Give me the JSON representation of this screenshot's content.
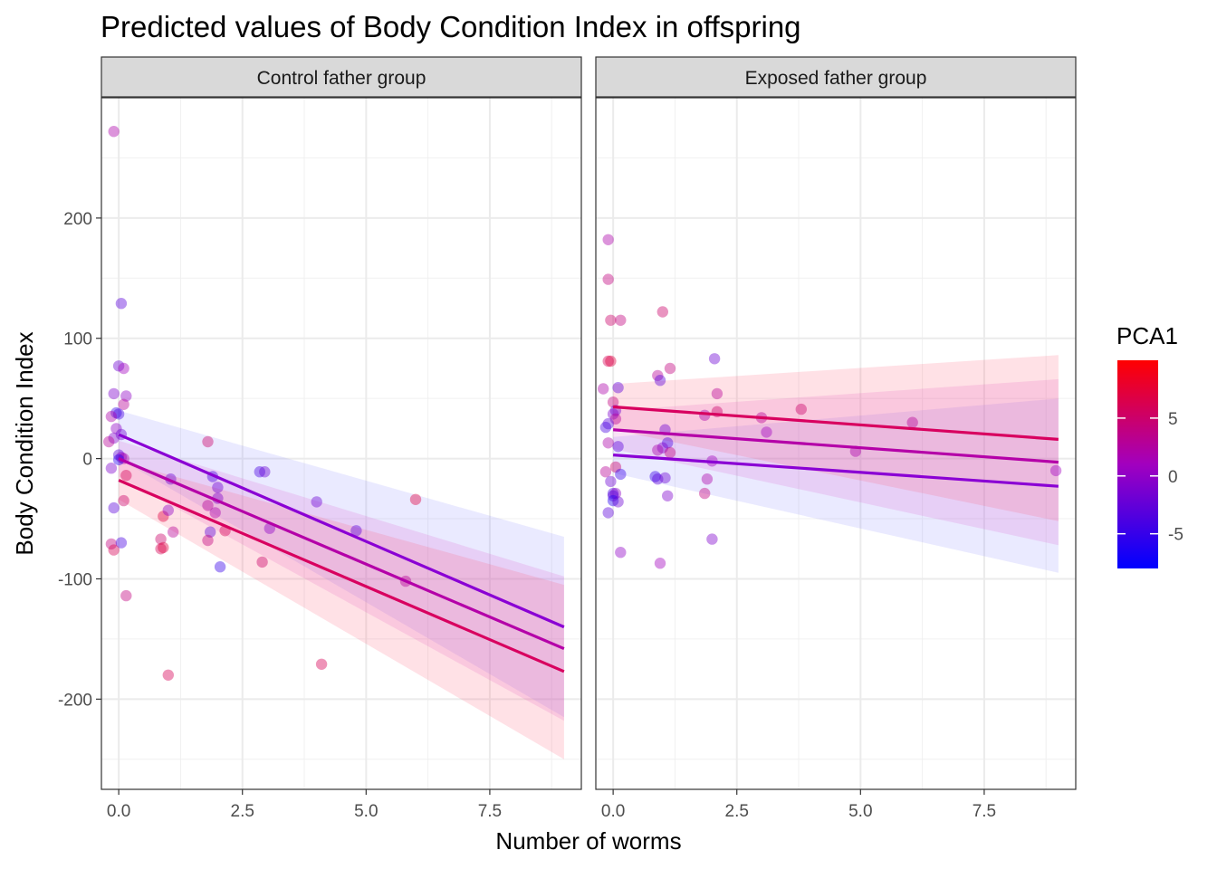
{
  "chart_data": {
    "type": "scatter",
    "title": "Predicted values of Body Condition Index in offspring",
    "xlabel": "Number of worms",
    "ylabel": "Body Condition Index",
    "xlim": [
      -0.35,
      9.35
    ],
    "ylim": [
      -275,
      300
    ],
    "x_ticks": [
      0,
      2.5,
      5,
      7.5
    ],
    "x_tick_labels": [
      "0.0",
      "2.5",
      "5.0",
      "7.5"
    ],
    "y_ticks": [
      -200,
      -100,
      0,
      100,
      200
    ],
    "y_tick_labels": [
      "-200",
      "-100",
      "0",
      "100",
      "200"
    ],
    "grid": true,
    "legend": {
      "title": "PCA1",
      "position": "right",
      "type": "colorbar",
      "range": [
        -8,
        10
      ],
      "ticks": [
        -5,
        0,
        5
      ],
      "tick_labels": [
        "-5",
        "0",
        "5"
      ],
      "color_low": "#0000ff",
      "color_mid": "#a200bf",
      "color_high": "#ff0000"
    },
    "panels": [
      {
        "strip_label": "Control father group",
        "lines": [
          {
            "pca1": -5,
            "color": "#8a00d4",
            "x": [
              0,
              9
            ],
            "y": [
              20,
              -140
            ],
            "ci": [
              [
                40,
                0
              ],
              [
                -65,
                -215
              ]
            ]
          },
          {
            "pca1": 0,
            "color": "#b400a8",
            "x": [
              0,
              9
            ],
            "y": [
              0,
              -158
            ],
            "ci": [
              [
                15,
                -15
              ],
              [
                -98,
                -218
              ]
            ]
          },
          {
            "pca1": 5,
            "color": "#d8005f",
            "x": [
              0,
              9
            ],
            "y": [
              -18,
              -177
            ],
            "ci": [
              [
                -2,
                -34
              ],
              [
                -105,
                -250
              ]
            ]
          }
        ],
        "points": [
          {
            "x": -0.1,
            "y": 272,
            "pca1": 2
          },
          {
            "x": 0.05,
            "y": 129,
            "pca1": -3
          },
          {
            "x": 0,
            "y": 77,
            "pca1": -2
          },
          {
            "x": 0.1,
            "y": 75,
            "pca1": 1
          },
          {
            "x": -0.1,
            "y": 54,
            "pca1": -1
          },
          {
            "x": 0.15,
            "y": 52,
            "pca1": 0
          },
          {
            "x": 0.1,
            "y": 45,
            "pca1": 3
          },
          {
            "x": -0.05,
            "y": 38,
            "pca1": -5
          },
          {
            "x": 0,
            "y": 37,
            "pca1": -4
          },
          {
            "x": -0.15,
            "y": 35,
            "pca1": 2
          },
          {
            "x": -0.05,
            "y": 25,
            "pca1": 0
          },
          {
            "x": 0.05,
            "y": 20,
            "pca1": -2
          },
          {
            "x": -0.1,
            "y": 17,
            "pca1": -1
          },
          {
            "x": -0.2,
            "y": 14,
            "pca1": 3
          },
          {
            "x": 0,
            "y": 3,
            "pca1": -3
          },
          {
            "x": 0.05,
            "y": 1,
            "pca1": 0
          },
          {
            "x": 0.1,
            "y": 0,
            "pca1": 2
          },
          {
            "x": 0,
            "y": -1,
            "pca1": -6
          },
          {
            "x": -0.15,
            "y": -8,
            "pca1": -1
          },
          {
            "x": 0.15,
            "y": -14,
            "pca1": 6
          },
          {
            "x": 0.1,
            "y": -35,
            "pca1": 5
          },
          {
            "x": -0.1,
            "y": -41,
            "pca1": -3
          },
          {
            "x": -0.15,
            "y": -71,
            "pca1": 4
          },
          {
            "x": 0.05,
            "y": -70,
            "pca1": -4
          },
          {
            "x": -0.1,
            "y": -76,
            "pca1": 6
          },
          {
            "x": 0.15,
            "y": -114,
            "pca1": 4
          },
          {
            "x": 0.9,
            "y": -48,
            "pca1": 7
          },
          {
            "x": 1.0,
            "y": -43,
            "pca1": 0
          },
          {
            "x": 1.05,
            "y": -17,
            "pca1": -2
          },
          {
            "x": 0.85,
            "y": -67,
            "pca1": 5
          },
          {
            "x": 0.85,
            "y": -75,
            "pca1": 6
          },
          {
            "x": 0.9,
            "y": -74,
            "pca1": 7
          },
          {
            "x": 1.1,
            "y": -61,
            "pca1": 3
          },
          {
            "x": 1.0,
            "y": -180,
            "pca1": 6
          },
          {
            "x": 1.8,
            "y": 14,
            "pca1": 5
          },
          {
            "x": 1.9,
            "y": -15,
            "pca1": -4
          },
          {
            "x": 2.0,
            "y": -24,
            "pca1": -2
          },
          {
            "x": 2.0,
            "y": -33,
            "pca1": -1
          },
          {
            "x": 1.8,
            "y": -39,
            "pca1": 3
          },
          {
            "x": 1.95,
            "y": -45,
            "pca1": 2
          },
          {
            "x": 1.85,
            "y": -61,
            "pca1": -3
          },
          {
            "x": 1.8,
            "y": -68,
            "pca1": 4
          },
          {
            "x": 2.15,
            "y": -60,
            "pca1": 6
          },
          {
            "x": 2.05,
            "y": -90,
            "pca1": -5
          },
          {
            "x": 2.85,
            "y": -11,
            "pca1": -4
          },
          {
            "x": 2.95,
            "y": -11,
            "pca1": -2
          },
          {
            "x": 3.05,
            "y": -58,
            "pca1": 0
          },
          {
            "x": 2.9,
            "y": -86,
            "pca1": 5
          },
          {
            "x": 4.0,
            "y": -36,
            "pca1": -2
          },
          {
            "x": 4.1,
            "y": -171,
            "pca1": 6
          },
          {
            "x": 4.8,
            "y": -60,
            "pca1": -3
          },
          {
            "x": 6.0,
            "y": -34,
            "pca1": 7
          },
          {
            "x": 5.8,
            "y": -102,
            "pca1": 3
          }
        ]
      },
      {
        "strip_label": "Exposed father group",
        "lines": [
          {
            "pca1": -5,
            "color": "#8a00d4",
            "x": [
              0,
              9
            ],
            "y": [
              3,
              -23
            ],
            "ci": [
              [
                18,
                -12
              ],
              [
                50,
                -95
              ]
            ]
          },
          {
            "pca1": 0,
            "color": "#b400a8",
            "x": [
              0,
              9
            ],
            "y": [
              24,
              -3
            ],
            "ci": [
              [
                40,
                8
              ],
              [
                66,
                -72
              ]
            ]
          },
          {
            "pca1": 5,
            "color": "#d8005f",
            "x": [
              0,
              9
            ],
            "y": [
              43,
              16
            ],
            "ci": [
              [
                62,
                24
              ],
              [
                86,
                -52
              ]
            ]
          }
        ],
        "points": [
          {
            "x": -0.1,
            "y": 182,
            "pca1": 2
          },
          {
            "x": -0.1,
            "y": 149,
            "pca1": 4
          },
          {
            "x": -0.05,
            "y": 115,
            "pca1": 5
          },
          {
            "x": 0.15,
            "y": 115,
            "pca1": 4
          },
          {
            "x": -0.1,
            "y": 81,
            "pca1": 6
          },
          {
            "x": -0.05,
            "y": 81,
            "pca1": 7
          },
          {
            "x": 0.1,
            "y": 59,
            "pca1": -3
          },
          {
            "x": -0.2,
            "y": 58,
            "pca1": 2
          },
          {
            "x": 0,
            "y": 47,
            "pca1": 4
          },
          {
            "x": 0.05,
            "y": 40,
            "pca1": -2
          },
          {
            "x": 0,
            "y": 37,
            "pca1": -1
          },
          {
            "x": 0.05,
            "y": 33,
            "pca1": 3
          },
          {
            "x": -0.1,
            "y": 29,
            "pca1": -3
          },
          {
            "x": -0.15,
            "y": 26,
            "pca1": -4
          },
          {
            "x": -0.1,
            "y": 13,
            "pca1": 2
          },
          {
            "x": 0.1,
            "y": 10,
            "pca1": -3
          },
          {
            "x": 0.05,
            "y": -7,
            "pca1": 5
          },
          {
            "x": -0.15,
            "y": -11,
            "pca1": 3
          },
          {
            "x": 0.15,
            "y": -13,
            "pca1": -5
          },
          {
            "x": -0.05,
            "y": -19,
            "pca1": -2
          },
          {
            "x": 0,
            "y": -29,
            "pca1": -4
          },
          {
            "x": 0.05,
            "y": -29,
            "pca1": 0
          },
          {
            "x": 0,
            "y": -31,
            "pca1": -3
          },
          {
            "x": 0,
            "y": -35,
            "pca1": -6
          },
          {
            "x": 0.1,
            "y": -36,
            "pca1": -2
          },
          {
            "x": -0.1,
            "y": -45,
            "pca1": -3
          },
          {
            "x": 0.15,
            "y": -78,
            "pca1": 0
          },
          {
            "x": 1.0,
            "y": 122,
            "pca1": 5
          },
          {
            "x": 1.15,
            "y": 75,
            "pca1": 4
          },
          {
            "x": 0.9,
            "y": 69,
            "pca1": 3
          },
          {
            "x": 0.95,
            "y": 65,
            "pca1": -3
          },
          {
            "x": 1.05,
            "y": 24,
            "pca1": -2
          },
          {
            "x": 1.1,
            "y": 13,
            "pca1": -4
          },
          {
            "x": 1.0,
            "y": 9,
            "pca1": -1
          },
          {
            "x": 0.9,
            "y": 7,
            "pca1": 2
          },
          {
            "x": 1.15,
            "y": 5,
            "pca1": 4
          },
          {
            "x": 0.85,
            "y": -15,
            "pca1": -5
          },
          {
            "x": 0.9,
            "y": -17,
            "pca1": -3
          },
          {
            "x": 1.05,
            "y": -16,
            "pca1": -2
          },
          {
            "x": 1.1,
            "y": -31,
            "pca1": -1
          },
          {
            "x": 0.95,
            "y": -87,
            "pca1": 1
          },
          {
            "x": 2.05,
            "y": 83,
            "pca1": -2
          },
          {
            "x": 2.1,
            "y": 54,
            "pca1": 3
          },
          {
            "x": 2.1,
            "y": 39,
            "pca1": 5
          },
          {
            "x": 1.85,
            "y": 36,
            "pca1": 2
          },
          {
            "x": 2.0,
            "y": -2,
            "pca1": 1
          },
          {
            "x": 1.9,
            "y": -17,
            "pca1": 2
          },
          {
            "x": 1.85,
            "y": -29,
            "pca1": 4
          },
          {
            "x": 2.0,
            "y": -67,
            "pca1": -1
          },
          {
            "x": 3.0,
            "y": 34,
            "pca1": 3
          },
          {
            "x": 3.1,
            "y": 22,
            "pca1": 1
          },
          {
            "x": 3.8,
            "y": 41,
            "pca1": 5
          },
          {
            "x": 4.9,
            "y": 6,
            "pca1": 2
          },
          {
            "x": 6.05,
            "y": 30,
            "pca1": 3
          },
          {
            "x": 8.95,
            "y": -10,
            "pca1": 1
          }
        ]
      }
    ]
  }
}
